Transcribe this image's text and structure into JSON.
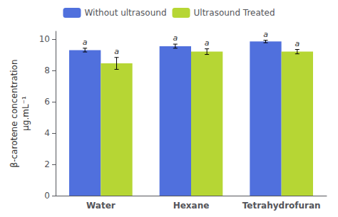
{
  "chart_data": {
    "type": "bar",
    "categories": [
      "Water",
      "Hexane",
      "Tetrahydrofuran"
    ],
    "series": [
      {
        "name": "Without ultrasound",
        "values": [
          9.3,
          9.55,
          9.85
        ],
        "errors": [
          0.12,
          0.13,
          0.08
        ]
      },
      {
        "name": "Ultrasound Treated",
        "values": [
          8.45,
          9.2,
          9.2
        ],
        "errors": [
          0.38,
          0.18,
          0.14
        ]
      }
    ],
    "ylabel": "β-carotene concentration\nµg.mL⁻¹",
    "ylim": [
      0,
      10.5
    ],
    "yticks": [
      0,
      2,
      4,
      6,
      8,
      10
    ],
    "grid": false,
    "legend": "top",
    "annotations": [
      {
        "text": "a",
        "series": "Without ultrasound",
        "category": "Water"
      },
      {
        "text": "a",
        "series": "Ultrasound Treated",
        "category": "Water"
      },
      {
        "text": "a",
        "series": "Without ultrasound",
        "category": "Hexane"
      },
      {
        "text": "a",
        "series": "Ultrasound Treated",
        "category": "Hexane"
      },
      {
        "text": "a",
        "series": "Without ultrasound",
        "category": "Tetrahydrofuran"
      },
      {
        "text": "a",
        "series": "Ultrasound Treated",
        "category": "Tetrahydrofuran"
      }
    ]
  }
}
